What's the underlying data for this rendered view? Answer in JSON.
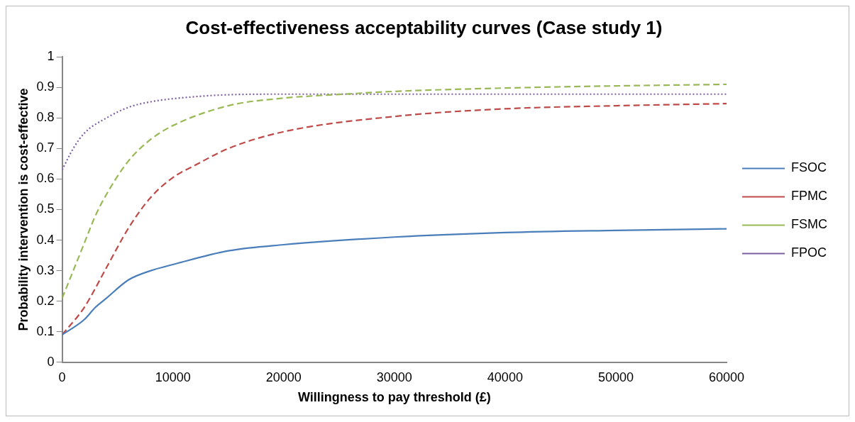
{
  "chart_data": {
    "type": "line",
    "title": "Cost-effectiveness acceptability curves (Case study 1)",
    "xlabel": "Willingness to pay threshold (£)",
    "ylabel": "Probability intervention is cost-effective",
    "xlim": [
      0,
      60000
    ],
    "xticks": [
      0,
      10000,
      20000,
      30000,
      40000,
      50000,
      60000
    ],
    "ylim": [
      0,
      1
    ],
    "yticks": [
      0,
      0.1,
      0.2,
      0.3,
      0.4,
      0.5,
      0.6,
      0.7,
      0.8,
      0.9,
      1
    ],
    "grid": false,
    "legend": "right",
    "marker": "none",
    "series": [
      {
        "name": "FSOC",
        "color": "#4a7ebb",
        "line_style": "solid",
        "x": [
          0,
          2000,
          3000,
          4000,
          6000,
          8000,
          10000,
          15000,
          20000,
          30000,
          40000,
          50000,
          60000
        ],
        "values": [
          0.09,
          0.14,
          0.18,
          0.21,
          0.27,
          0.3,
          0.32,
          0.365,
          0.385,
          0.41,
          0.425,
          0.432,
          0.437
        ]
      },
      {
        "name": "FPMC",
        "color": "#be4b48",
        "line_style": "dashed",
        "x": [
          0,
          2000,
          4000,
          6000,
          8000,
          10000,
          12000,
          15000,
          20000,
          30000,
          40000,
          50000,
          60000
        ],
        "values": [
          0.09,
          0.18,
          0.31,
          0.44,
          0.54,
          0.605,
          0.645,
          0.7,
          0.755,
          0.805,
          0.83,
          0.84,
          0.847
        ]
      },
      {
        "name": "FSMC",
        "color": "#98b954",
        "line_style": "dashed",
        "x": [
          0,
          1000,
          2000,
          3000,
          4000,
          6000,
          8000,
          10000,
          15000,
          20000,
          25000,
          30000,
          40000,
          50000,
          60000
        ],
        "values": [
          0.21,
          0.3,
          0.39,
          0.48,
          0.55,
          0.66,
          0.73,
          0.775,
          0.84,
          0.865,
          0.877,
          0.887,
          0.898,
          0.905,
          0.91
        ]
      },
      {
        "name": "FPOC",
        "color": "#7d60a0",
        "line_style": "dotted",
        "x": [
          0,
          1000,
          2000,
          4000,
          6000,
          8000,
          10000,
          15000,
          20000,
          60000
        ],
        "values": [
          0.63,
          0.7,
          0.75,
          0.8,
          0.835,
          0.853,
          0.863,
          0.876,
          0.878,
          0.878
        ]
      }
    ]
  }
}
